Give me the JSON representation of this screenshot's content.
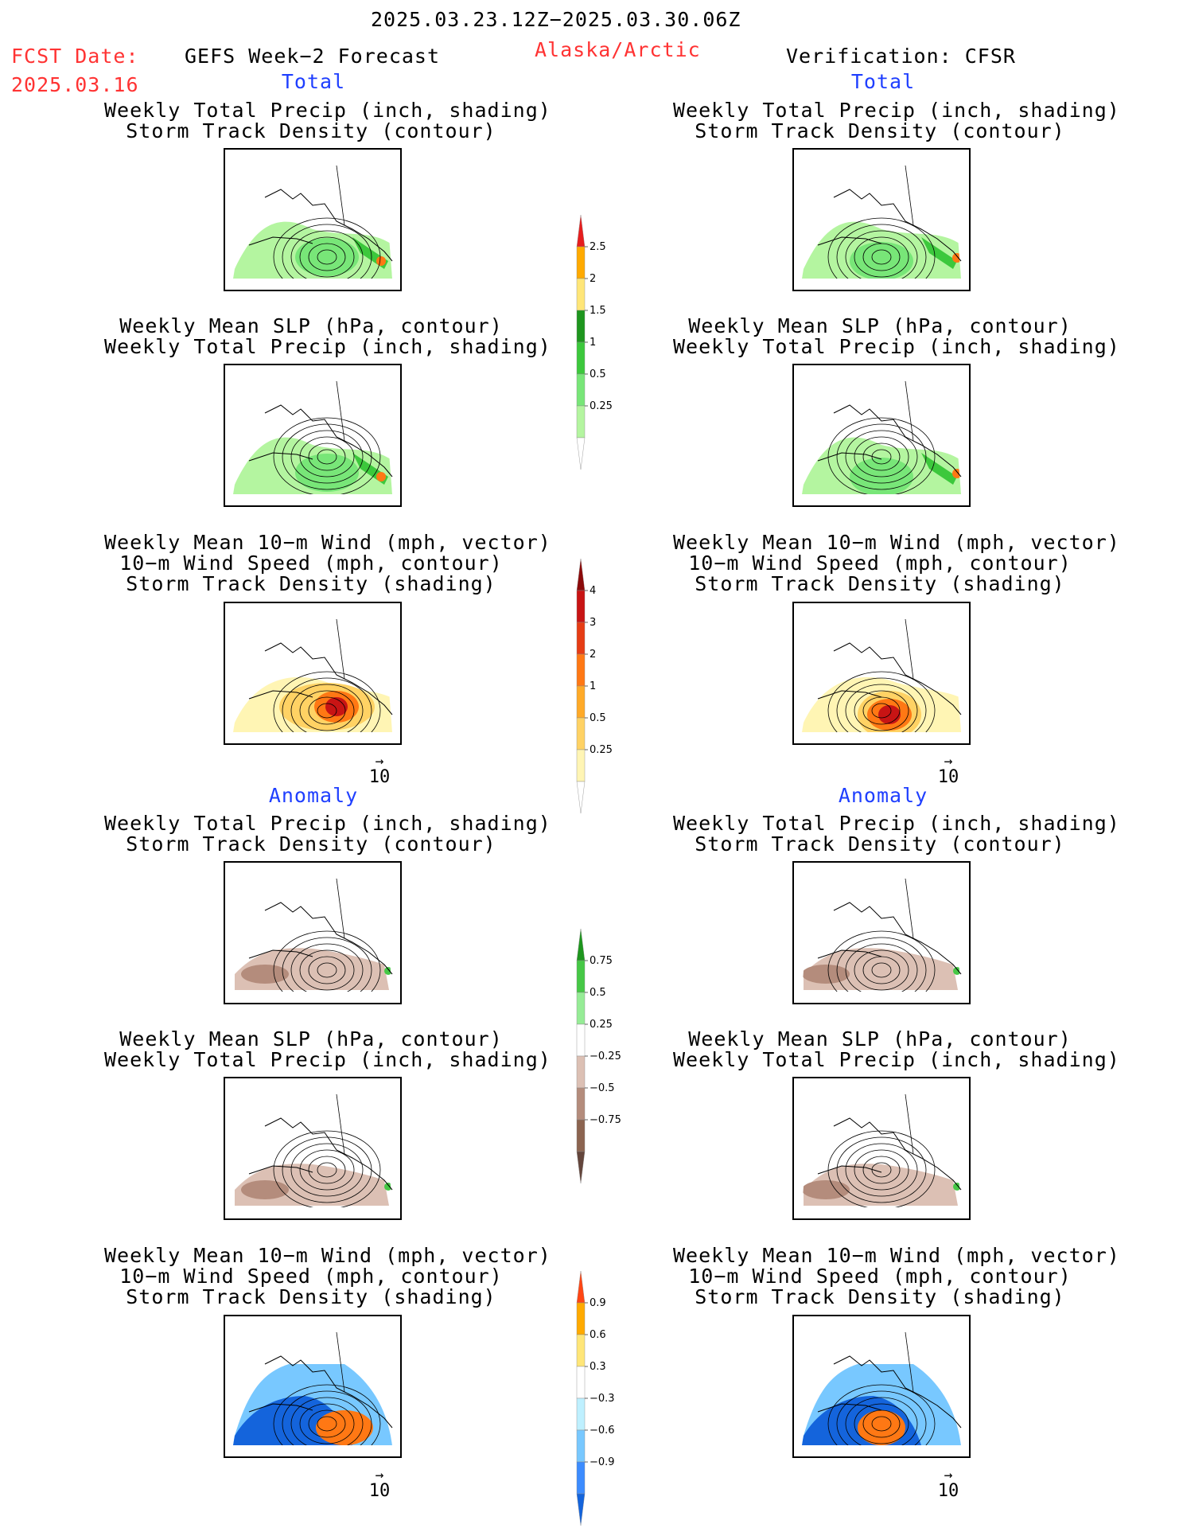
{
  "header": {
    "period": "2025.03.23.12Z−2025.03.30.06Z",
    "fcst_label": "FCST Date:",
    "fcst_date": "2025.03.16",
    "left_title": "GEFS Week−2 Forecast",
    "region": "Alaska/Arctic",
    "right_title": "Verification: CFSR"
  },
  "sections": {
    "total": "Total",
    "anomaly": "Anomaly"
  },
  "panel_titles": {
    "precip_storm": [
      "Weekly Total Precip (inch, shading)",
      "Storm Track Density (contour)"
    ],
    "slp_precip": [
      "Weekly Mean SLP (hPa, contour)",
      "Weekly Total Precip (inch, shading)"
    ],
    "wind_storm": [
      "Weekly Mean 10−m Wind (mph, vector)",
      "10−m Wind Speed (mph, contour)",
      "Storm Track Density (shading)"
    ]
  },
  "vector_reference": "10",
  "colorbars": {
    "precip_total": {
      "labels": [
        "0.25",
        "0.5",
        "1",
        "1.5",
        "2",
        "2.5"
      ],
      "colors": [
        "#ffffff",
        "#b4f5a0",
        "#78e678",
        "#3cc83c",
        "#1e961e",
        "#ffe678",
        "#ffaa00",
        "#e61e1e"
      ]
    },
    "storm_total": {
      "labels": [
        "0.25",
        "0.5",
        "1",
        "2",
        "3",
        "4"
      ],
      "colors": [
        "#ffffff",
        "#fff5b4",
        "#ffd264",
        "#ffaa28",
        "#ff7814",
        "#e63c14",
        "#c81414",
        "#8c0a0a"
      ]
    },
    "precip_anom": {
      "labels": [
        "0.75",
        "0.5",
        "0.25",
        "−0.25",
        "−0.5",
        "−0.75"
      ],
      "colors": [
        "#1e961e",
        "#46c846",
        "#96ec96",
        "#ffffff",
        "#dcc0b4",
        "#b48c7c",
        "#8c6450",
        "#64463c"
      ]
    },
    "storm_anom": {
      "labels": [
        "0.9",
        "0.6",
        "0.3",
        "−0.3",
        "−0.6",
        "−0.9"
      ],
      "colors": [
        "#ff4614",
        "#ffaa00",
        "#ffe678",
        "#ffffff",
        "#bef0ff",
        "#78c8ff",
        "#3c8cff",
        "#1464dc"
      ]
    }
  }
}
